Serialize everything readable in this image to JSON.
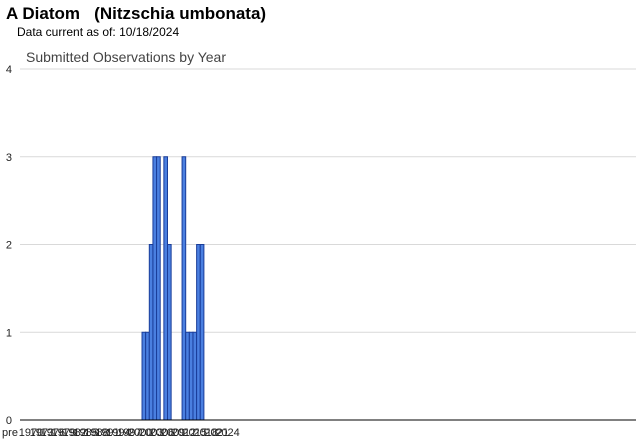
{
  "header": {
    "common_name": "A Diatom",
    "scientific_name": "(Nitzschia umbonata)",
    "data_current_label": "Data current as of:",
    "data_current_date": "10/18/2024"
  },
  "chart_data": {
    "type": "bar",
    "title": "Submitted Observations by Year",
    "xlabel": "",
    "ylabel": "",
    "ylim": [
      0,
      4
    ],
    "y_ticks": [
      0,
      1,
      2,
      3,
      4
    ],
    "grid": true,
    "x_tick_labels": [
      "pre",
      "1970",
      "1973",
      "1976",
      "1979",
      "1982",
      "1985",
      "1988",
      "1991",
      "1994",
      "1997",
      "2000",
      "2003",
      "2006",
      "2009",
      "2012",
      "2015",
      "2018",
      "2021",
      "2024"
    ],
    "categories": [
      "2001",
      "2002",
      "2003",
      "2004",
      "2005",
      "2006",
      "2007",
      "2008",
      "2009",
      "2010",
      "2011",
      "2012",
      "2013",
      "2014",
      "2015",
      "2016",
      "2017"
    ],
    "values": [
      1,
      1,
      2,
      3,
      3,
      0,
      3,
      2,
      0,
      0,
      0,
      3,
      1,
      1,
      1,
      2,
      2
    ],
    "colors": {
      "bar_fill": "#4a7fe0",
      "bar_stroke": "#1a3d99",
      "grid": "#d9d9d9",
      "axis": "#000000"
    }
  }
}
